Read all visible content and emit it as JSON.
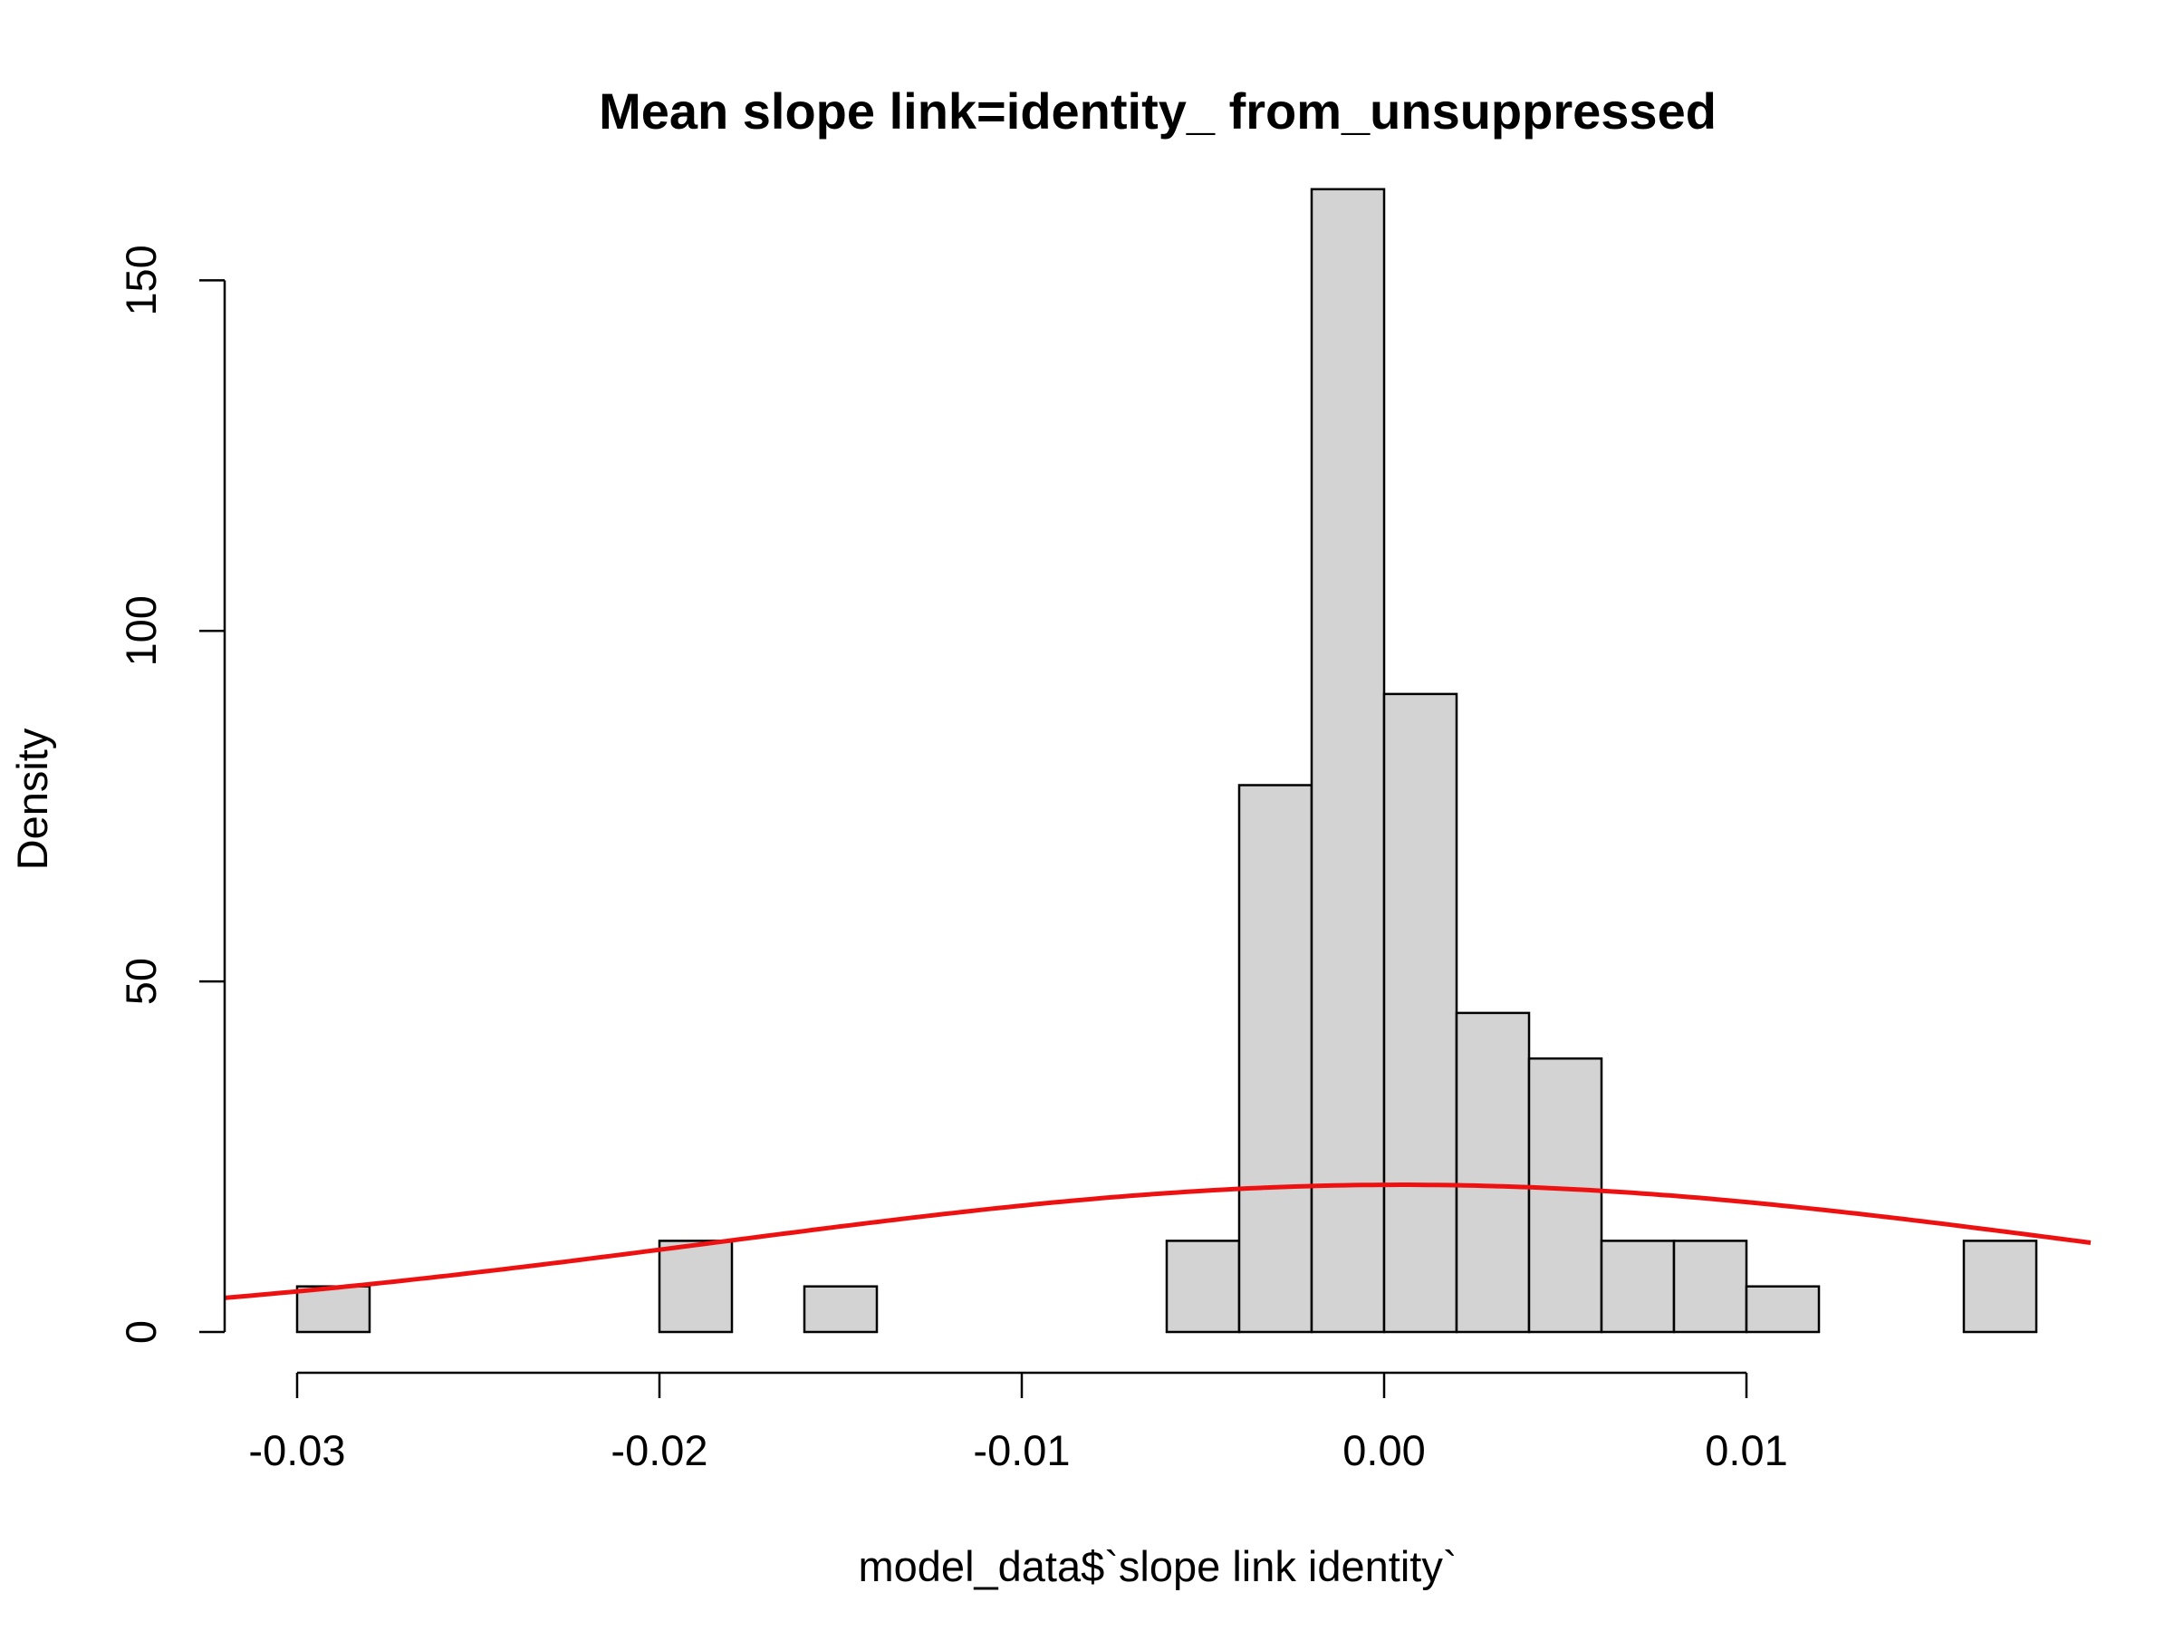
{
  "chart_data": {
    "type": "bar",
    "title": "Mean slope link=identity_ from_unsuppressed",
    "xlabel": "model_data$`slope link identity`",
    "ylabel": "Density",
    "xlim": [
      -0.032,
      0.0195
    ],
    "ylim": [
      0,
      160
    ],
    "xticks": [
      -0.03,
      -0.02,
      -0.01,
      0.0,
      0.01
    ],
    "xtick_labels": [
      "-0.03",
      "-0.02",
      "-0.01",
      "0.00",
      "0.01"
    ],
    "yticks": [
      0,
      50,
      100,
      150
    ],
    "ytick_labels": [
      "0",
      "50",
      "100",
      "150"
    ],
    "bin_width": 0.002,
    "bars": [
      {
        "x0": -0.03,
        "x1": -0.028,
        "density": 6.5
      },
      {
        "x0": -0.02,
        "x1": -0.018,
        "density": 13
      },
      {
        "x0": -0.016,
        "x1": -0.014,
        "density": 6.5
      },
      {
        "x0": -0.006,
        "x1": -0.004,
        "density": 13
      },
      {
        "x0": -0.004,
        "x1": -0.002,
        "density": 78
      },
      {
        "x0": -0.002,
        "x1": 0.0,
        "density": 163
      },
      {
        "x0": 0.0,
        "x1": 0.002,
        "density": 91
      },
      {
        "x0": 0.002,
        "x1": 0.004,
        "density": 45.5
      },
      {
        "x0": 0.004,
        "x1": 0.006,
        "density": 39
      },
      {
        "x0": 0.006,
        "x1": 0.008,
        "density": 13
      },
      {
        "x0": 0.008,
        "x1": 0.01,
        "density": 13
      },
      {
        "x0": 0.01,
        "x1": 0.012,
        "density": 6.5
      },
      {
        "x0": 0.016,
        "x1": 0.018,
        "density": 13
      }
    ],
    "curve": {
      "type": "normal density",
      "mean": 0.0005,
      "sd": 0.019,
      "x_range": [
        -0.032,
        0.0195
      ]
    },
    "colors": {
      "bar_fill": "#d3d3d3",
      "bar_stroke": "#000000",
      "curve": "#ee1111"
    },
    "grid": false,
    "legend": "none"
  }
}
